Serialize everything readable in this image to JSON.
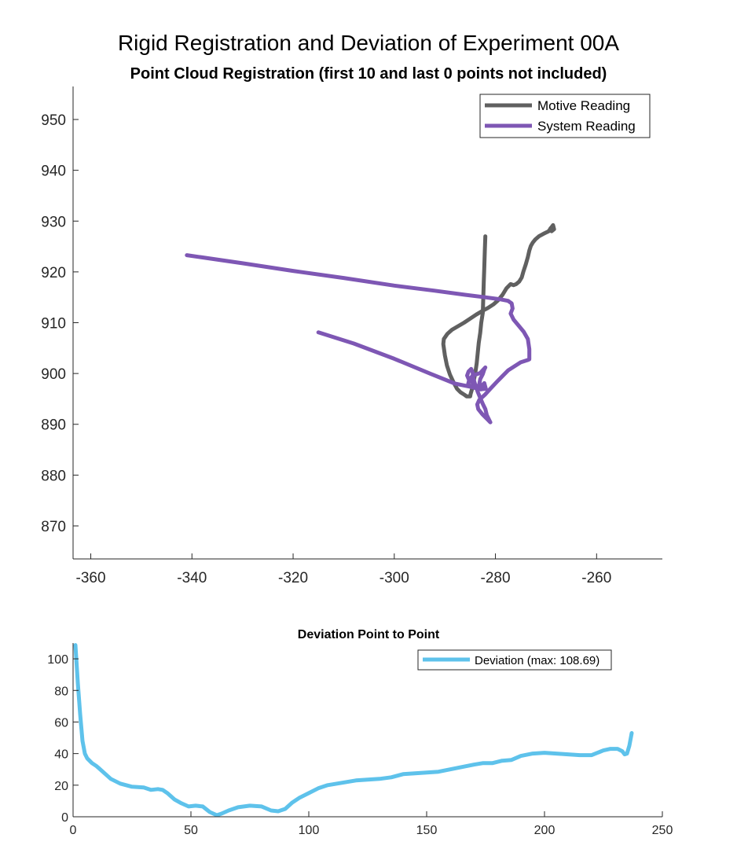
{
  "figure_title": "Rigid Registration and Deviation of Experiment 00A",
  "chart_data": [
    {
      "type": "line",
      "title": "Point Cloud Registration (first 10 and last 0 points not included)",
      "xlabel": "",
      "ylabel": "",
      "xlim": [
        -363.5,
        -247
      ],
      "ylim": [
        863.5,
        956.5
      ],
      "xticks": [
        -360,
        -340,
        -320,
        -300,
        -280,
        -260
      ],
      "yticks": [
        870,
        880,
        890,
        900,
        910,
        920,
        930,
        940,
        950
      ],
      "grid": false,
      "legend_location": "top-right",
      "series": [
        {
          "name": "Motive Reading",
          "color": "#606060",
          "x": [
            -282,
            -282.1,
            -282.2,
            -282.3,
            -282.4,
            -282.5,
            -282.8,
            -283.0,
            -283.3,
            -283.5,
            -283.7,
            -284.0,
            -284.3,
            -284.6,
            -284.9,
            -285.0,
            -285.3,
            -285.7,
            -286.1,
            -286.9,
            -287.6,
            -288.3,
            -289.0,
            -289.6,
            -290.0,
            -290.3,
            -290.2,
            -289.5,
            -288.6,
            -287.4,
            -286.2,
            -285.0,
            -283.8,
            -282.6,
            -281.5,
            -280.4,
            -279.5,
            -278.6,
            -277.8,
            -277.0,
            -276.4,
            -275.9,
            -275.3,
            -274.8,
            -274.5,
            -274.0,
            -273.6,
            -273.3,
            -273.0,
            -272.6,
            -272.1,
            -271.4,
            -270.5,
            -269.5,
            -269.0,
            -268.6,
            -268.4,
            -268.9,
            -269.1
          ],
          "y": [
            927,
            924,
            921,
            918,
            915,
            912,
            910,
            908,
            906,
            904,
            902,
            900,
            898.5,
            897,
            896,
            895.5,
            895.5,
            895.5,
            895.8,
            896.3,
            897.0,
            898.3,
            899.8,
            901.6,
            903.6,
            905.8,
            906.8,
            907.8,
            908.6,
            909.3,
            910.0,
            910.8,
            911.6,
            912.3,
            912.9,
            913.6,
            914.4,
            915.5,
            916.8,
            917.6,
            917.4,
            917.6,
            918.1,
            918.9,
            920.0,
            921.5,
            922.9,
            924.2,
            925.1,
            925.8,
            926.4,
            927.0,
            927.5,
            928.0,
            928.7,
            929.2,
            928.4,
            928.0,
            928.6
          ]
        },
        {
          "name": "System Reading",
          "color": "#7e57b4",
          "x": [
            -341,
            -330,
            -320,
            -310,
            -300,
            -292,
            -286,
            -282,
            -279,
            -277.5,
            -276.8,
            -276.6,
            -277.0,
            -276.4,
            -275.4,
            -274.4,
            -273.6,
            -273.3,
            -273.3,
            -273.5,
            -275.0,
            -277.5,
            -279.5,
            -281.0,
            -282.0,
            -283.2,
            -283.6,
            -283.4,
            -282.6,
            -281.6,
            -281.0,
            -281.2,
            -281.7,
            -282.0,
            -282.5,
            -283.0,
            -283.5,
            -284.0,
            -284.4,
            -284.5,
            -284.8,
            -285.3,
            -285.6,
            -285.3,
            -284.5,
            -284.0,
            -283.6,
            -283.2,
            -283.0,
            -282.5,
            -282.2,
            -282.0,
            -283.0,
            -284.5,
            -285.2,
            -285.4,
            -284.8,
            -283.6,
            -282.8,
            -282.5,
            -282.2,
            -281.9,
            -283.0,
            -285.0,
            -288.0,
            -293.0,
            -300.0,
            -308.0,
            -315.0
          ],
          "y": [
            923.3,
            921.7,
            920.2,
            918.8,
            917.3,
            916.3,
            915.5,
            915.0,
            914.6,
            914.3,
            913.8,
            912.8,
            911.8,
            910.6,
            909.4,
            908.2,
            906.8,
            904.8,
            902.8,
            902.7,
            902.2,
            900.6,
            898.6,
            897.0,
            895.9,
            894.8,
            893.9,
            893.0,
            892.0,
            891.0,
            890.4,
            890.8,
            891.8,
            893.0,
            894.0,
            895.2,
            896.4,
            897.8,
            899.2,
            900.2,
            900.9,
            900.4,
            899.6,
            898.9,
            898.2,
            897.6,
            897.1,
            897.9,
            898.9,
            899.9,
            900.8,
            901.2,
            900.1,
            899.6,
            898.7,
            897.9,
            897.4,
            897.1,
            896.9,
            897.8,
            898.1,
            897.0,
            896.9,
            897.4,
            898.0,
            900.0,
            902.9,
            905.9,
            908.1
          ]
        }
      ]
    },
    {
      "type": "line",
      "title": "Deviation Point to Point",
      "xlabel": "",
      "ylabel": "",
      "xlim": [
        0,
        250
      ],
      "ylim": [
        0,
        110
      ],
      "xticks": [
        0,
        50,
        100,
        150,
        200,
        250
      ],
      "yticks": [
        0,
        20,
        40,
        60,
        80,
        100
      ],
      "grid": false,
      "legend_location": "top-right",
      "series": [
        {
          "name": "Deviation (max: 108.69)",
          "color": "#5ec2eb",
          "x": [
            1,
            2,
            3,
            4,
            5,
            6,
            8,
            10,
            13,
            16,
            20,
            25,
            30,
            33,
            36,
            38,
            40,
            43,
            46,
            49,
            52,
            55,
            58,
            61,
            63,
            66,
            70,
            75,
            80,
            84,
            87,
            90,
            93,
            96,
            100,
            104,
            108,
            112,
            116,
            120,
            125,
            130,
            135,
            140,
            145,
            150,
            155,
            160,
            165,
            170,
            174,
            178,
            182,
            186,
            190,
            195,
            200,
            205,
            210,
            215,
            220,
            225,
            228,
            231,
            233,
            234,
            235,
            236,
            237
          ],
          "y": [
            108.69,
            85,
            65,
            48,
            40,
            37,
            34,
            32,
            28,
            24,
            21,
            19,
            18.5,
            17,
            17.5,
            17,
            15,
            11,
            8.5,
            6.5,
            7,
            6.5,
            3,
            1,
            2,
            4,
            6,
            7,
            6.5,
            4,
            3.5,
            5,
            9,
            12,
            15,
            18,
            20,
            21,
            22,
            23,
            23.5,
            24,
            25,
            27,
            27.5,
            28,
            28.5,
            30,
            31.5,
            33,
            34,
            34,
            35.5,
            36,
            38.5,
            40,
            40.5,
            40,
            39.5,
            39,
            39,
            42,
            43,
            43,
            41.5,
            39.5,
            40,
            45,
            53
          ]
        }
      ]
    }
  ]
}
